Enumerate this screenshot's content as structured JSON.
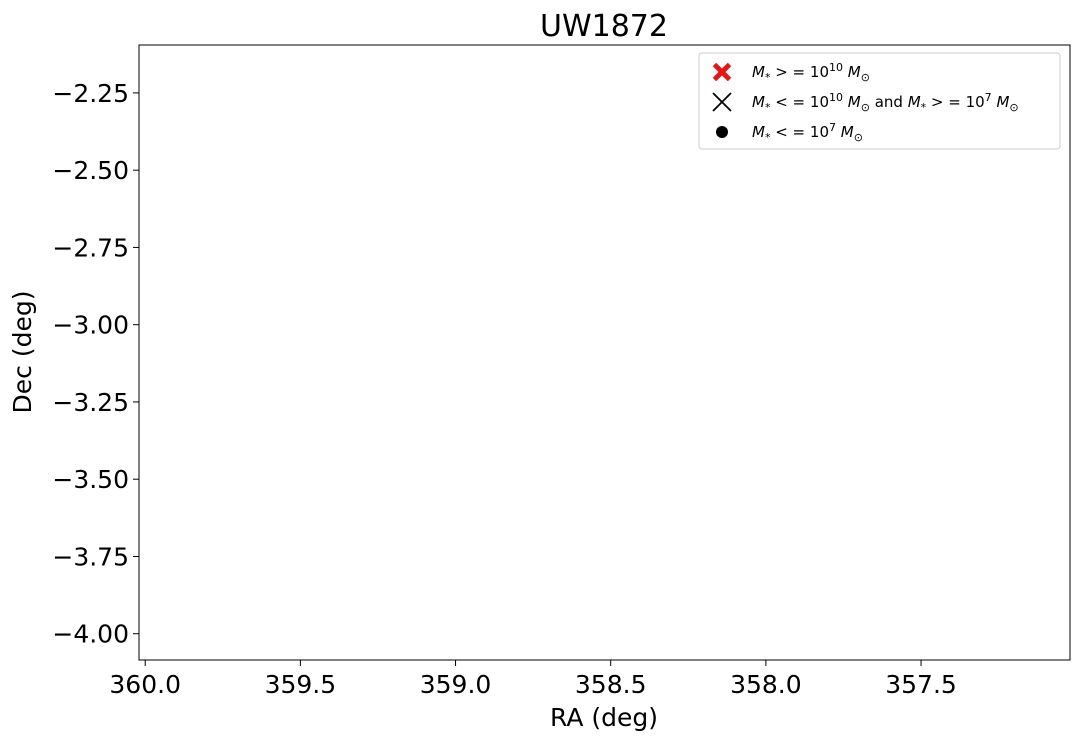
{
  "chart_data": {
    "type": "scatter",
    "title": "UW1872",
    "xlabel": "RA (deg)",
    "ylabel": "Dec (deg)",
    "xlim": [
      360.02,
      357.02
    ],
    "ylim": [
      -4.085,
      -2.095
    ],
    "x_inverted": true,
    "x_ticks": [
      360.0,
      359.5,
      359.0,
      358.5,
      358.0,
      357.5
    ],
    "x_tick_labels": [
      "360.0",
      "359.5",
      "359.0",
      "358.5",
      "358.0",
      "357.5"
    ],
    "y_ticks": [
      -2.25,
      -2.5,
      -2.75,
      -3.0,
      -3.25,
      -3.5,
      -3.75,
      -4.0
    ],
    "y_tick_labels": [
      "−2.25",
      "−2.50",
      "−2.75",
      "−3.00",
      "−3.25",
      "−3.50",
      "−3.75",
      "−4.00"
    ],
    "grid": false,
    "legend_position": "top-right",
    "series": [
      {
        "name": "M* >= 10^10 M⊙",
        "marker": "X-filled",
        "color": "#ee1111",
        "points": []
      },
      {
        "name": "M* <= 10^10 M⊙ and M* >= 10^7 M⊙",
        "marker": "x",
        "color": "#000000",
        "points": []
      },
      {
        "name": "M* <= 10^7 M⊙",
        "marker": "circle",
        "color": "#000000",
        "points": []
      }
    ],
    "legend_entries": [
      {
        "parts": [
          {
            "t": "M",
            "style": "italic"
          },
          {
            "t": "*",
            "style": "sub"
          },
          {
            "t": " > = 10",
            "style": "normal"
          },
          {
            "t": "10",
            "style": "sup"
          },
          {
            "t": " M",
            "style": "italic"
          },
          {
            "t": "⊙",
            "style": "sub"
          }
        ]
      },
      {
        "parts": [
          {
            "t": "M",
            "style": "italic"
          },
          {
            "t": "*",
            "style": "sub"
          },
          {
            "t": " < = 10",
            "style": "normal"
          },
          {
            "t": "10",
            "style": "sup"
          },
          {
            "t": " M",
            "style": "italic"
          },
          {
            "t": "⊙",
            "style": "sub"
          },
          {
            "t": " and ",
            "style": "normal"
          },
          {
            "t": "M",
            "style": "italic"
          },
          {
            "t": "*",
            "style": "sub"
          },
          {
            "t": " > = 10",
            "style": "normal"
          },
          {
            "t": "7",
            "style": "sup"
          },
          {
            "t": " M",
            "style": "italic"
          },
          {
            "t": "⊙",
            "style": "sub"
          }
        ]
      },
      {
        "parts": [
          {
            "t": "M",
            "style": "italic"
          },
          {
            "t": "*",
            "style": "sub"
          },
          {
            "t": " < = 10",
            "style": "normal"
          },
          {
            "t": "7",
            "style": "sup"
          },
          {
            "t": " M",
            "style": "italic"
          },
          {
            "t": "⊙",
            "style": "sub"
          }
        ]
      }
    ]
  }
}
